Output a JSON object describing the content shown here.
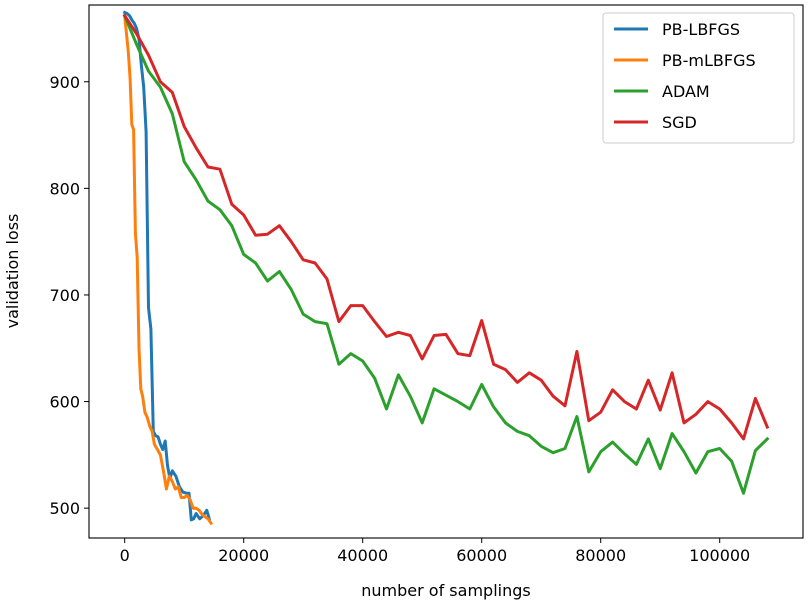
{
  "chart_data": {
    "type": "line",
    "title": "",
    "xlabel": "number of samplings",
    "ylabel": "validation loss",
    "xlim": [
      -6000,
      114000
    ],
    "ylim": [
      472,
      972
    ],
    "xticks": [
      0,
      20000,
      40000,
      60000,
      80000,
      100000
    ],
    "yticks": [
      500,
      600,
      700,
      800,
      900
    ],
    "grid": false,
    "legend_position": "top-right",
    "series": [
      {
        "name": "PB-LBFGS",
        "color": "#1f77b4",
        "x": [
          0,
          400,
          800,
          1200,
          1600,
          2000,
          2400,
          2800,
          3200,
          3600,
          4000,
          4400,
          4800,
          5200,
          5600,
          6000,
          6400,
          6800,
          7200,
          7600,
          8000,
          8600,
          9200,
          9800,
          10400,
          10800,
          11200,
          11600,
          12000,
          12600,
          13200,
          13800,
          14200
        ],
        "y": [
          965,
          964,
          962,
          958,
          955,
          950,
          940,
          915,
          895,
          853,
          688,
          668,
          572,
          568,
          567,
          560,
          555,
          563,
          540,
          528,
          535,
          530,
          520,
          515,
          514,
          514,
          489,
          490,
          495,
          490,
          493,
          498,
          490
        ]
      },
      {
        "name": "PB-mLBFGS",
        "color": "#ff7f0e",
        "x": [
          0,
          300,
          600,
          900,
          1200,
          1500,
          1800,
          2100,
          2400,
          2700,
          3000,
          3400,
          3800,
          4200,
          4600,
          5000,
          5500,
          6000,
          6500,
          7000,
          7500,
          8000,
          8500,
          9000,
          9500,
          10000,
          10500,
          11000,
          11500,
          12000,
          12500,
          13000,
          13500,
          14000,
          14500
        ],
        "y": [
          962,
          945,
          928,
          903,
          860,
          855,
          758,
          735,
          650,
          612,
          605,
          590,
          585,
          577,
          572,
          560,
          555,
          550,
          535,
          518,
          530,
          525,
          518,
          520,
          510,
          510,
          512,
          508,
          500,
          500,
          498,
          494,
          492,
          490,
          486
        ]
      },
      {
        "name": "ADAM",
        "color": "#2ca02c",
        "x": [
          0,
          2000,
          4000,
          6000,
          8000,
          10000,
          12000,
          14000,
          16000,
          18000,
          20000,
          22000,
          24000,
          26000,
          28000,
          30000,
          32000,
          34000,
          36000,
          38000,
          40000,
          42000,
          44000,
          46000,
          48000,
          50000,
          52000,
          54000,
          56000,
          58000,
          60000,
          62000,
          64000,
          66000,
          68000,
          70000,
          72000,
          74000,
          76000,
          78000,
          80000,
          82000,
          84000,
          86000,
          88000,
          90000,
          92000,
          94000,
          96000,
          98000,
          100000,
          102000,
          104000,
          106000,
          108000
        ],
        "y": [
          962,
          935,
          910,
          895,
          870,
          825,
          808,
          788,
          780,
          765,
          738,
          730,
          713,
          722,
          705,
          682,
          675,
          673,
          635,
          645,
          638,
          622,
          593,
          625,
          605,
          580,
          612,
          606,
          600,
          593,
          616,
          595,
          580,
          572,
          568,
          558,
          552,
          556,
          586,
          534,
          553,
          562,
          551,
          541,
          565,
          537,
          570,
          553,
          533,
          553,
          556,
          544,
          514,
          554,
          565
        ]
      },
      {
        "name": "SGD",
        "color": "#d62728",
        "x": [
          0,
          2000,
          4000,
          6000,
          8000,
          10000,
          12000,
          14000,
          16000,
          18000,
          20000,
          22000,
          24000,
          26000,
          28000,
          30000,
          32000,
          34000,
          36000,
          38000,
          40000,
          42000,
          44000,
          46000,
          48000,
          50000,
          52000,
          54000,
          56000,
          58000,
          60000,
          62000,
          64000,
          66000,
          68000,
          70000,
          72000,
          74000,
          76000,
          78000,
          80000,
          82000,
          84000,
          86000,
          88000,
          90000,
          92000,
          94000,
          96000,
          98000,
          100000,
          102000,
          104000,
          106000,
          108000
        ],
        "y": [
          962,
          945,
          925,
          900,
          890,
          858,
          838,
          820,
          818,
          785,
          775,
          756,
          757,
          765,
          750,
          733,
          730,
          715,
          675,
          690,
          690,
          675,
          661,
          665,
          662,
          640,
          662,
          663,
          645,
          643,
          676,
          635,
          630,
          618,
          627,
          620,
          605,
          596,
          647,
          582,
          590,
          611,
          600,
          593,
          620,
          592,
          627,
          580,
          588,
          600,
          593,
          580,
          565,
          603,
          576
        ]
      }
    ]
  }
}
